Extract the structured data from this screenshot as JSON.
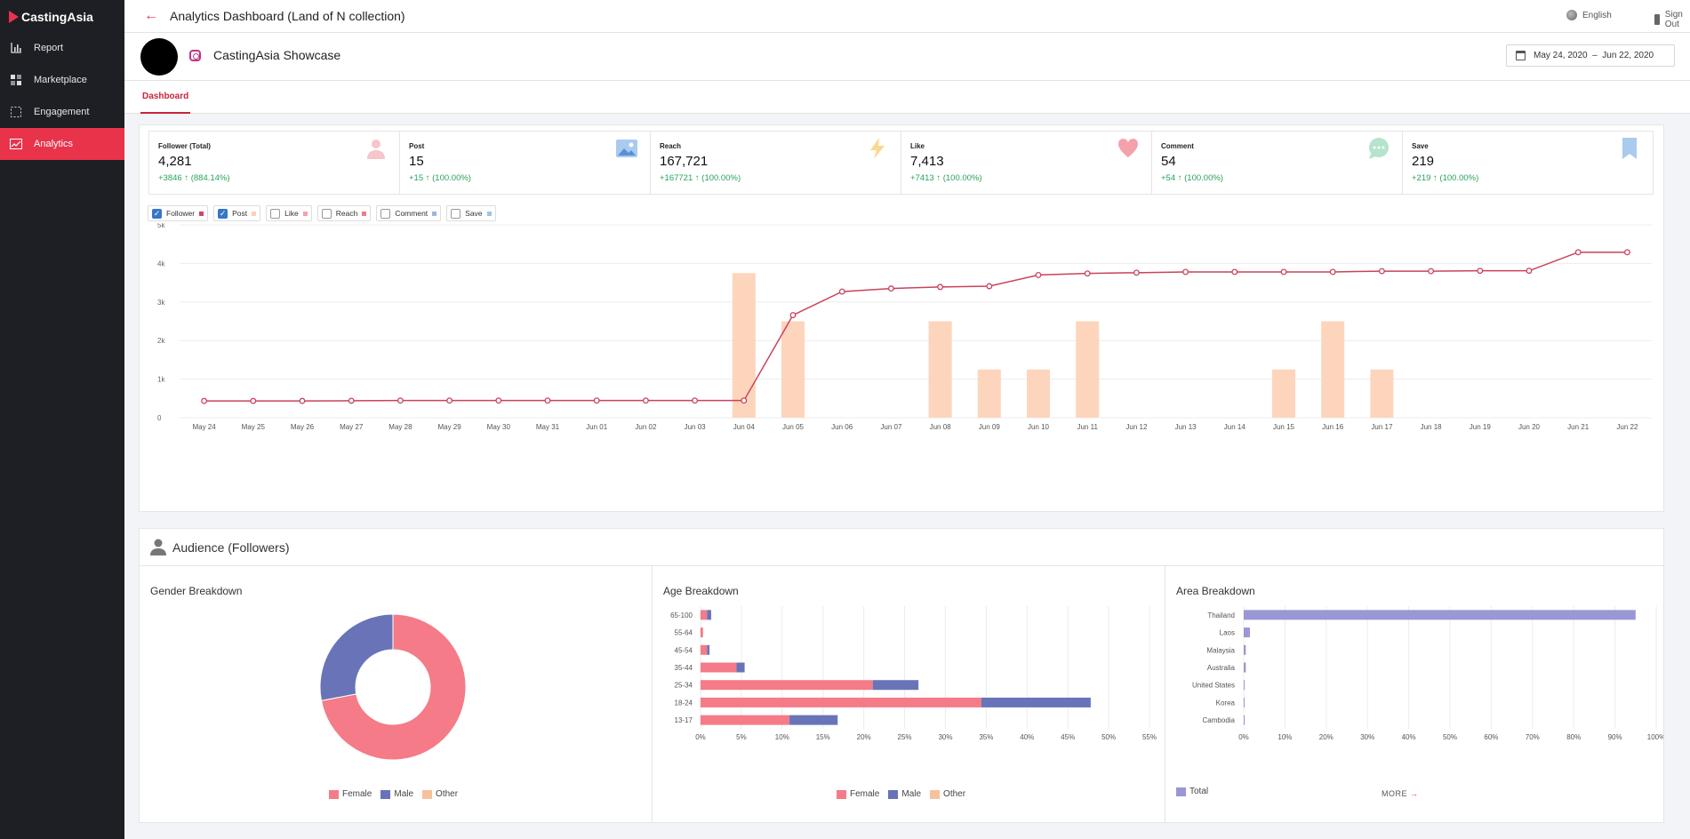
{
  "brand": {
    "name": "CastingAsia",
    "accent": "#e8334b"
  },
  "sidebar": {
    "items": [
      {
        "label": "Report",
        "icon": "bar-chart-icon"
      },
      {
        "label": "Marketplace",
        "icon": "grid-icon"
      },
      {
        "label": "Engagement",
        "icon": "dashed-square-icon"
      },
      {
        "label": "Analytics",
        "icon": "trend-chart-icon",
        "active": true
      }
    ]
  },
  "header": {
    "title": "Analytics Dashboard (Land of N collection)",
    "language": "English",
    "sign_out": "Sign Out"
  },
  "profile": {
    "account_name": "CastingAsia Showcase",
    "date_range": "May 24, 2020  –  Jun 22, 2020"
  },
  "tabs": [
    {
      "label": "Dashboard",
      "active": true
    }
  ],
  "stats": [
    {
      "label": "Follower (Total)",
      "value": "4,281",
      "change": "+3846 ↑ (884.14%)",
      "icon": "person-icon"
    },
    {
      "label": "Post",
      "value": "15",
      "change": "+15 ↑ (100.00%)",
      "icon": "image-icon"
    },
    {
      "label": "Reach",
      "value": "167,721",
      "change": "+167721 ↑ (100.00%)",
      "icon": "lightning-icon"
    },
    {
      "label": "Like",
      "value": "7,413",
      "change": "+7413 ↑ (100.00%)",
      "icon": "heart-icon"
    },
    {
      "label": "Comment",
      "value": "54",
      "change": "+54 ↑ (100.00%)",
      "icon": "speech-bubble-icon"
    },
    {
      "label": "Save",
      "value": "219",
      "change": "+219 ↑ (100.00%)",
      "icon": "bookmark-icon"
    }
  ],
  "legend": [
    {
      "label": "Follower",
      "checked": true,
      "color": "#d0465e"
    },
    {
      "label": "Post",
      "checked": true,
      "color": "#fbd0b6"
    },
    {
      "label": "Like",
      "checked": false,
      "color": "#f4a1a8"
    },
    {
      "label": "Reach",
      "checked": false,
      "color": "#ee7b8a"
    },
    {
      "label": "Comment",
      "checked": false,
      "color": "#9fb6d6"
    },
    {
      "label": "Save",
      "checked": false,
      "color": "#9fc3e3"
    }
  ],
  "audience": {
    "title": "Audience (Followers)",
    "gender_title": "Gender Breakdown",
    "age_title": "Age Breakdown",
    "area_title": "Area Breakdown",
    "legend_female": "Female",
    "legend_male": "Male",
    "legend_other": "Other",
    "legend_total": "Total",
    "more": "MORE"
  },
  "chart_data": [
    {
      "type": "line+bar",
      "categories": [
        "May 24",
        "May 25",
        "May 26",
        "May 27",
        "May 28",
        "May 29",
        "May 30",
        "May 31",
        "Jun 01",
        "Jun 02",
        "Jun 03",
        "Jun 04",
        "Jun 05",
        "Jun 06",
        "Jun 07",
        "Jun 08",
        "Jun 09",
        "Jun 10",
        "Jun 11",
        "Jun 12",
        "Jun 13",
        "Jun 14",
        "Jun 15",
        "Jun 16",
        "Jun 17",
        "Jun 18",
        "Jun 19",
        "Jun 20",
        "Jun 21",
        "Jun 22"
      ],
      "yticks": [
        "0",
        "1k",
        "2k",
        "3k",
        "4k",
        "5k"
      ],
      "ylim": [
        0,
        5000
      ],
      "series": [
        {
          "name": "Follower",
          "type": "line",
          "color": "#c8435c",
          "values": [
            435,
            435,
            435,
            440,
            445,
            445,
            445,
            445,
            445,
            445,
            445,
            445,
            2660,
            3270,
            3350,
            3390,
            3410,
            3700,
            3740,
            3760,
            3780,
            3780,
            3780,
            3780,
            3800,
            3800,
            3810,
            3810,
            4290,
            4290
          ]
        },
        {
          "name": "Post",
          "type": "bar",
          "color": "#fdd5bd",
          "values": [
            0,
            0,
            0,
            0,
            0,
            0,
            0,
            0,
            0,
            0,
            0,
            3750,
            2500,
            0,
            0,
            2500,
            1250,
            1250,
            2500,
            0,
            0,
            0,
            1250,
            2500,
            1250,
            0,
            0,
            0,
            0,
            0
          ]
        }
      ],
      "grid": true
    },
    {
      "type": "pie",
      "title": "Gender Breakdown",
      "labels": [
        "Female",
        "Male",
        "Other"
      ],
      "values": [
        72,
        28,
        0
      ],
      "colors": [
        "#f47b87",
        "#6874b7",
        "#f6c19d"
      ]
    },
    {
      "type": "bar",
      "orientation": "horizontal",
      "stacked": true,
      "title": "Age Breakdown",
      "categories": [
        "65-100",
        "55-64",
        "45-54",
        "35-44",
        "25-34",
        "18-24",
        "13-17"
      ],
      "series": [
        {
          "name": "Female",
          "color": "#f47b87",
          "values": [
            0.8,
            0.3,
            0.8,
            4.4,
            21.1,
            34.4,
            10.9
          ]
        },
        {
          "name": "Male",
          "color": "#6874b7",
          "values": [
            0.5,
            0,
            0.3,
            1.0,
            5.6,
            13.4,
            5.9
          ]
        },
        {
          "name": "Other",
          "color": "#f6c19d",
          "values": [
            0,
            0,
            0,
            0,
            0,
            0,
            0
          ]
        }
      ],
      "xticks": [
        "0%",
        "5%",
        "10%",
        "15%",
        "20%",
        "25%",
        "30%",
        "35%",
        "40%",
        "45%",
        "50%",
        "55%"
      ],
      "xlim": [
        0,
        55
      ]
    },
    {
      "type": "bar",
      "orientation": "horizontal",
      "title": "Area Breakdown",
      "categories": [
        "Thailand",
        "Laos",
        "Malaysia",
        "Australia",
        "United States",
        "Korea",
        "Cambodia"
      ],
      "series": [
        {
          "name": "Total",
          "color": "#9b97d5",
          "values": [
            95,
            1.5,
            0.5,
            0.5,
            0.2,
            0.2,
            0.2
          ]
        }
      ],
      "xticks": [
        "0%",
        "10%",
        "20%",
        "30%",
        "40%",
        "50%",
        "60%",
        "70%",
        "80%",
        "90%",
        "100%"
      ],
      "xlim": [
        0,
        100
      ]
    }
  ]
}
